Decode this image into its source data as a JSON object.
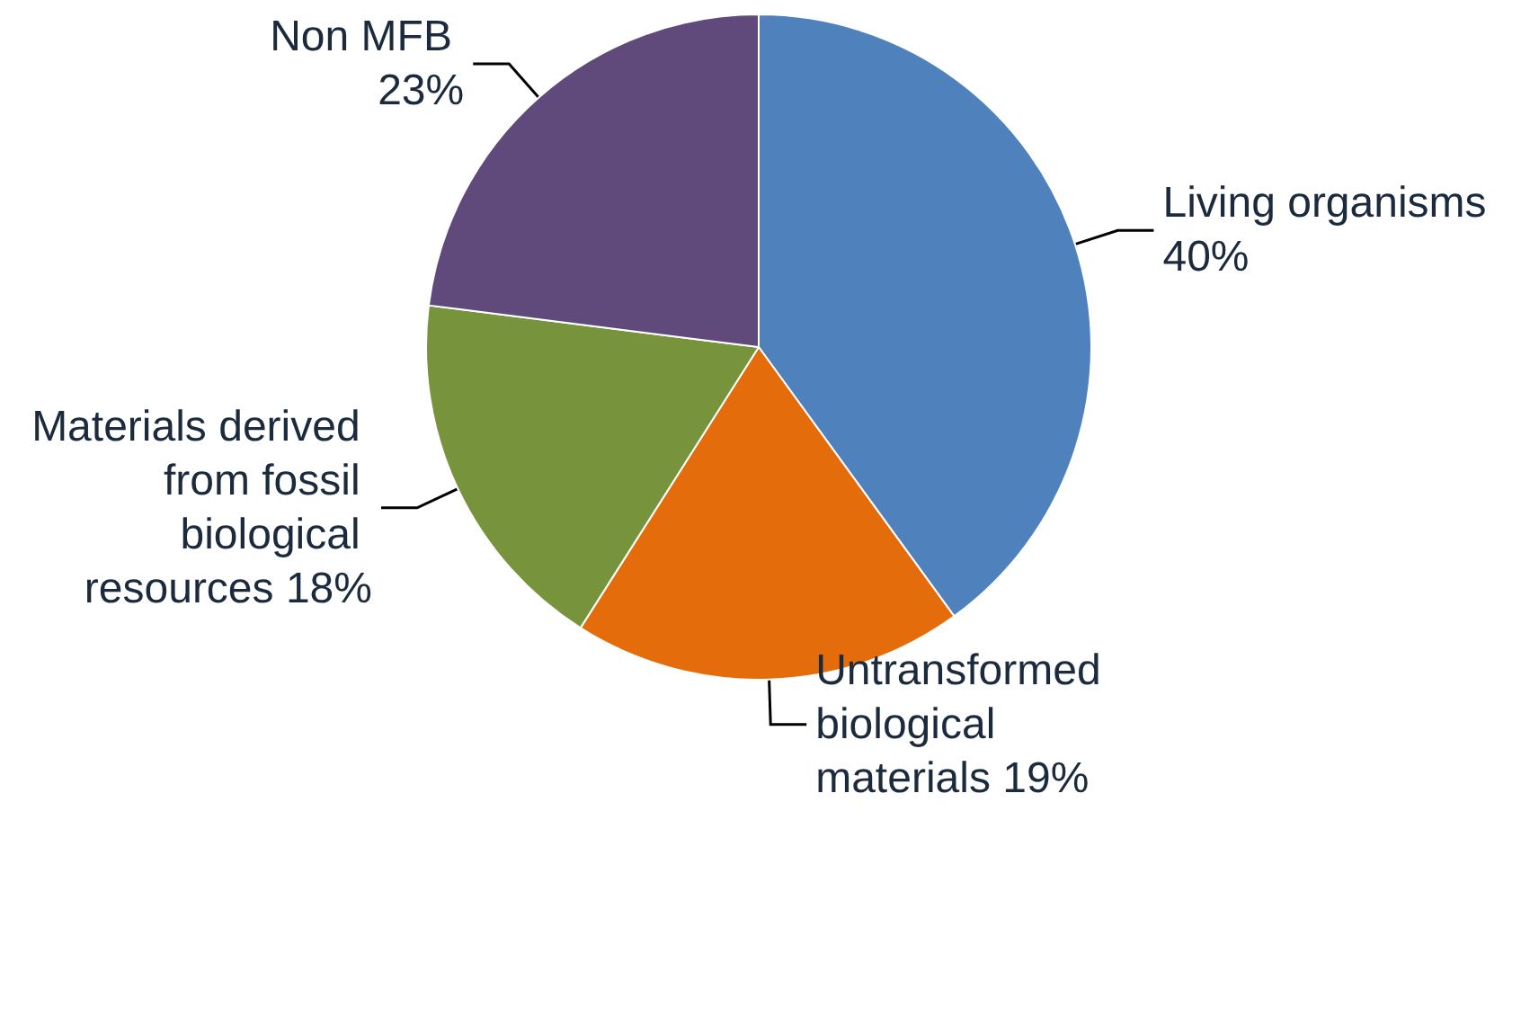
{
  "chart_data": {
    "type": "pie",
    "categories": [
      "Living organisms",
      "Untransformed biological materials",
      "Materials derived from fossil biological resources",
      "Non MFB"
    ],
    "values": [
      40,
      19,
      18,
      23
    ],
    "value_labels": [
      "40%",
      "19%",
      "18%",
      "23%"
    ],
    "colors": [
      "#4f81bd",
      "#e46c0a",
      "#77933c",
      "#604a7b"
    ],
    "legend": false
  }
}
